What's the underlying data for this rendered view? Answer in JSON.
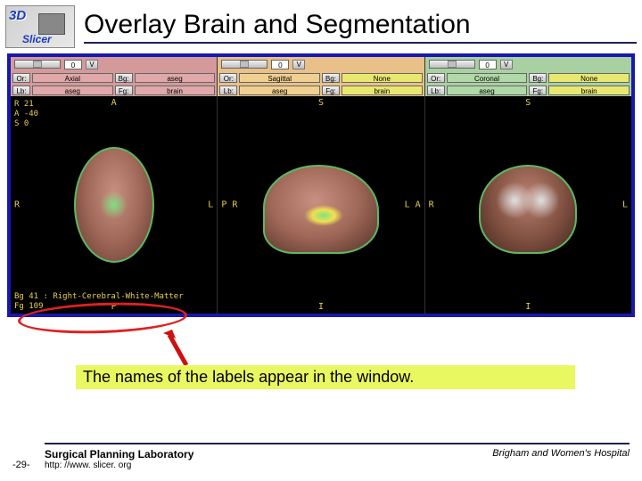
{
  "header": {
    "logo_3d": "3D",
    "logo_slicer": "Slicer",
    "title": "Overlay Brain and Segmentation"
  },
  "panes": [
    {
      "bar_class": "bar-red",
      "val_class": "val-red",
      "slider_value": "0",
      "slider_btn": "V",
      "or_label": "Or:",
      "or_val": "Axial",
      "bg_label": "Bg:",
      "bg_val": "aseg",
      "lb_label": "Lb:",
      "lb_val": "aseg",
      "fg_label": "Fg:",
      "fg_val": "brain",
      "top": "A",
      "bottom": "P",
      "left": "R",
      "right": "L",
      "coords": "R 21\nA -40\nS 0",
      "status1": "Bg 41 : Right-Cerebral-White-Matter",
      "status2": "Fg 109",
      "brain": "brain-axial"
    },
    {
      "bar_class": "bar-orange",
      "val_class": "val-orange",
      "slider_value": "0",
      "slider_btn": "V",
      "or_label": "Or:",
      "or_val": "Sagittal",
      "bg_label": "Bg:",
      "bg_val": "None",
      "bg_yellow": true,
      "lb_label": "Lb:",
      "lb_val": "aseg",
      "fg_label": "Fg:",
      "fg_val": "brain",
      "fg_yellow": true,
      "top": "S",
      "bottom": "I",
      "left": "P R",
      "right": "L A",
      "brain": "brain-sag"
    },
    {
      "bar_class": "bar-green",
      "val_class": "val-green",
      "slider_value": "0",
      "slider_btn": "V",
      "or_label": "Or:",
      "or_val": "Coronal",
      "bg_label": "Bg:",
      "bg_val": "None",
      "bg_yellow": true,
      "lb_label": "Lb:",
      "lb_val": "aseg",
      "fg_label": "Fg:",
      "fg_val": "brain",
      "fg_yellow": true,
      "top": "S",
      "bottom": "I",
      "left": "R",
      "right": "L",
      "brain": "brain-cor"
    }
  ],
  "caption": "The names of the labels appear in the window.",
  "footer": {
    "lab": "Surgical Planning Laboratory",
    "url": "http: //www. slicer. org",
    "hospital": "Brigham and Women's Hospital",
    "page": "-29-"
  },
  "colors": {
    "accent_border": "#1818b0",
    "highlight_green": "#e8f860",
    "ellipse_red": "#e02020",
    "arrow_red": "#d01010"
  }
}
